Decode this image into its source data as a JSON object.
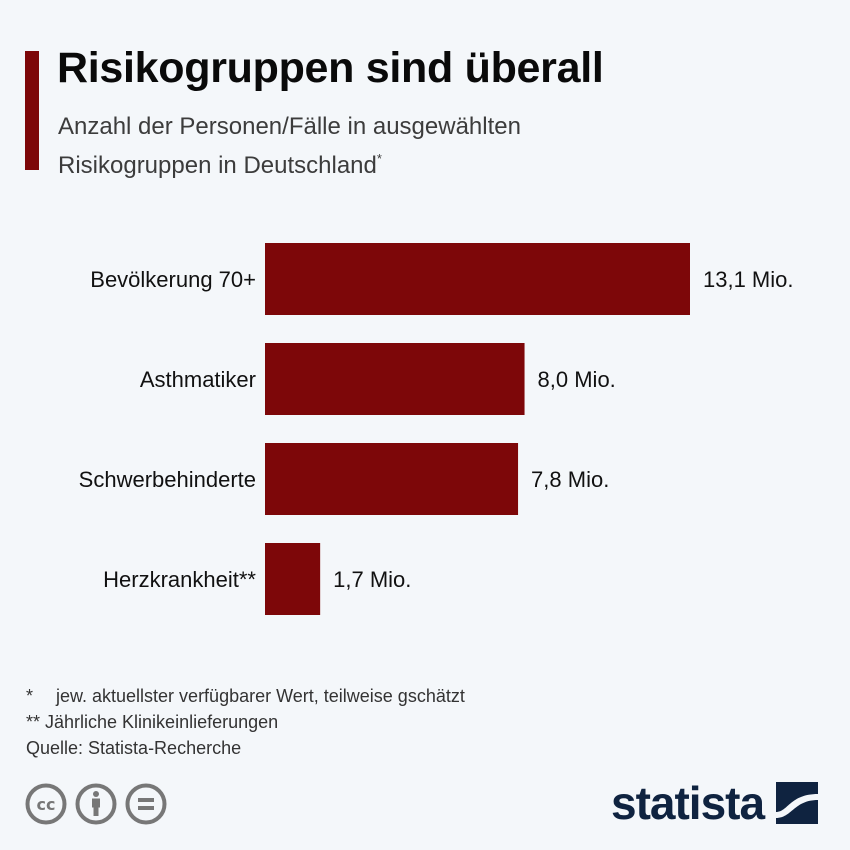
{
  "header": {
    "title": "Risikogruppen sind überall",
    "subtitle_line1": "Anzahl der Personen/Fälle in ausgewählten",
    "subtitle_line2": "Risikogruppen in Deutschland",
    "subtitle_mark": "*"
  },
  "colors": {
    "accent": "#7d0709",
    "bar": "#7d0709",
    "background": "#f4f7fa",
    "brand": "#0f2340",
    "icon_gray": "#777777"
  },
  "chart_data": {
    "type": "bar",
    "orientation": "horizontal",
    "title": "Risikogruppen sind überall",
    "subtitle": "Anzahl der Personen/Fälle in ausgewählten Risikogruppen in Deutschland*",
    "categories": [
      "Bevölkerung 70+",
      "Asthmatiker",
      "Schwerbehinderte",
      "Herzkrankheit**"
    ],
    "values": [
      13.1,
      8.0,
      7.8,
      1.7
    ],
    "value_labels": [
      "13,1 Mio.",
      "8,0 Mio.",
      "7,8 Mio.",
      "1,7 Mio."
    ],
    "unit": "Mio.",
    "xlabel": "",
    "ylabel": "",
    "xlim": [
      0,
      13.1
    ],
    "grid": false,
    "legend": "none"
  },
  "footnotes": {
    "note1_mark": "*",
    "note1_text": "jew. aktuellster verfügbarer Wert, teilweise gschätzt",
    "note2": "** Jährliche Klinikeinlieferungen",
    "source": "Quelle: Statista-Recherche"
  },
  "license_icons": [
    "cc-icon",
    "by-attribution-icon",
    "no-derivatives-icon"
  ],
  "logo": {
    "text": "statista"
  }
}
